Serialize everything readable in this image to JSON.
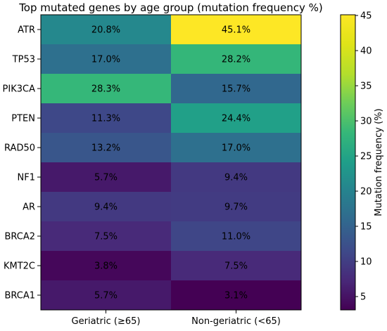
{
  "chart_data": {
    "type": "heatmap",
    "title": "Top mutated genes by age group (mutation frequency %)",
    "rows": [
      "ATR",
      "TP53",
      "PIK3CA",
      "PTEN",
      "RAD50",
      "NF1",
      "AR",
      "BRCA2",
      "KMT2C",
      "BRCA1"
    ],
    "columns": [
      "Geriatric (≥65)",
      "Non-geriatric (<65)"
    ],
    "values": [
      [
        20.8,
        45.1
      ],
      [
        17.0,
        28.2
      ],
      [
        28.3,
        15.7
      ],
      [
        11.3,
        24.4
      ],
      [
        13.2,
        17.0
      ],
      [
        5.7,
        9.4
      ],
      [
        9.4,
        9.7
      ],
      [
        7.5,
        11.0
      ],
      [
        3.8,
        7.5
      ],
      [
        5.7,
        3.1
      ]
    ],
    "cell_labels": [
      [
        "20.8%",
        "45.1%"
      ],
      [
        "17.0%",
        "28.2%"
      ],
      [
        "28.3%",
        "15.7%"
      ],
      [
        "11.3%",
        "24.4%"
      ],
      [
        "13.2%",
        "17.0%"
      ],
      [
        "5.7%",
        "9.4%"
      ],
      [
        "9.4%",
        "9.7%"
      ],
      [
        "7.5%",
        "11.0%"
      ],
      [
        "3.8%",
        "7.5%"
      ],
      [
        "5.7%",
        "3.1%"
      ]
    ],
    "colormap": "viridis",
    "vmin": 3.1,
    "vmax": 45.1,
    "colorbar": {
      "label": "Mutation frequency (%)",
      "ticks": [
        "5",
        "10",
        "15",
        "20",
        "25",
        "30",
        "35",
        "40",
        "45"
      ]
    }
  }
}
